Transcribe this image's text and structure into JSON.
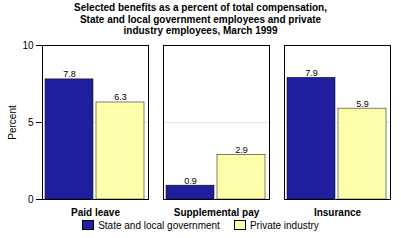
{
  "chart_data": {
    "type": "bar",
    "title": "Selected benefits as a percent of total compensation,\nState and local government employees and private\nindustry employees, March 1999",
    "categories": [
      "Paid leave",
      "Supplemental pay",
      "Insurance"
    ],
    "series": [
      {
        "name": "State and local government",
        "color": "#1f1f9f",
        "values": [
          7.8,
          0.9,
          7.9
        ]
      },
      {
        "name": "Private industry",
        "color": "#ffffaa",
        "values": [
          6.3,
          2.9,
          5.9
        ]
      }
    ],
    "ylabel": "Percent",
    "ylim": [
      0,
      10
    ],
    "yticks": [
      0,
      5,
      10
    ],
    "grid": true,
    "legend": "bottom",
    "data_labels": true
  }
}
